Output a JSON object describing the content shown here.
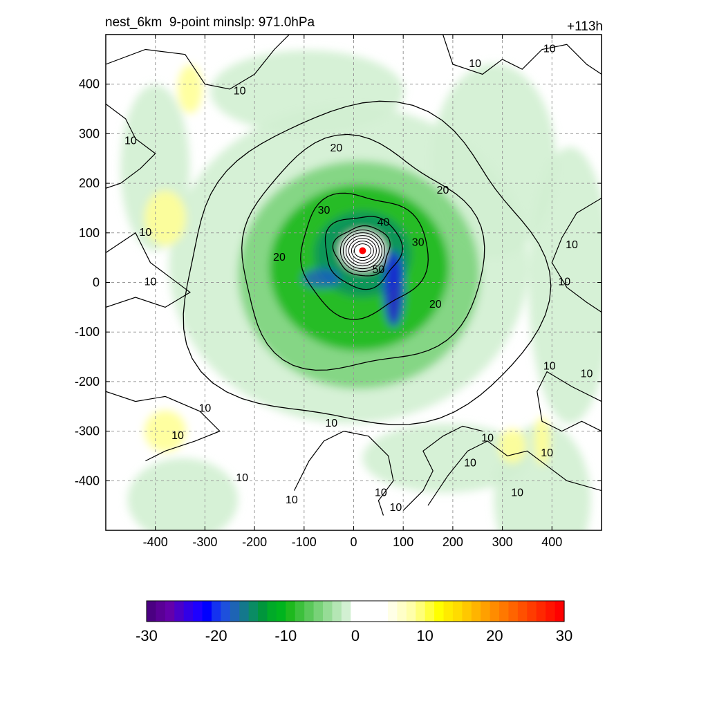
{
  "title": {
    "left": "nest_6km  9-point minslp: 971.0hPa",
    "right": "+113h"
  },
  "map": {
    "x_range": [
      -500,
      500
    ],
    "y_range": [
      -500,
      500
    ],
    "x_ticks": [
      -400,
      -300,
      -200,
      -100,
      0,
      100,
      200,
      300,
      400
    ],
    "y_ticks": [
      -400,
      -300,
      -200,
      -100,
      0,
      100,
      200,
      300,
      400
    ],
    "grid": true,
    "storm_center": [
      18,
      64
    ],
    "contour_levels": [
      10,
      20,
      30,
      40,
      50
    ],
    "contour_labels": [
      {
        "text": "10",
        "x": -230,
        "y": 385
      },
      {
        "text": "10",
        "x": -450,
        "y": 285
      },
      {
        "text": "10",
        "x": -420,
        "y": 100
      },
      {
        "text": "10",
        "x": -410,
        "y": 0
      },
      {
        "text": "10",
        "x": 245,
        "y": 440
      },
      {
        "text": "10",
        "x": 395,
        "y": 470
      },
      {
        "text": "10",
        "x": 440,
        "y": 75
      },
      {
        "text": "10",
        "x": 425,
        "y": 0
      },
      {
        "text": "10",
        "x": 395,
        "y": -170
      },
      {
        "text": "10",
        "x": 470,
        "y": -185
      },
      {
        "text": "10",
        "x": -300,
        "y": -255
      },
      {
        "text": "10",
        "x": -355,
        "y": -310
      },
      {
        "text": "10",
        "x": -45,
        "y": -285
      },
      {
        "text": "10",
        "x": -225,
        "y": -395
      },
      {
        "text": "10",
        "x": -125,
        "y": -440
      },
      {
        "text": "10",
        "x": 55,
        "y": -425
      },
      {
        "text": "10",
        "x": 85,
        "y": -455
      },
      {
        "text": "10",
        "x": 270,
        "y": -315
      },
      {
        "text": "10",
        "x": 235,
        "y": -365
      },
      {
        "text": "10",
        "x": 330,
        "y": -425
      },
      {
        "text": "10",
        "x": 390,
        "y": -345
      },
      {
        "text": "20",
        "x": -35,
        "y": 270
      },
      {
        "text": "20",
        "x": 180,
        "y": 185
      },
      {
        "text": "20",
        "x": -150,
        "y": 50
      },
      {
        "text": "20",
        "x": 165,
        "y": -45
      },
      {
        "text": "30",
        "x": -60,
        "y": 145
      },
      {
        "text": "30",
        "x": 130,
        "y": 80
      },
      {
        "text": "40",
        "x": 60,
        "y": 120
      },
      {
        "text": "50",
        "x": 50,
        "y": 25
      }
    ]
  },
  "colorbar": {
    "ticks": [
      -30,
      -20,
      -10,
      0,
      10,
      20,
      30
    ],
    "colors": [
      "#4b0082",
      "#5a0096",
      "#6400aa",
      "#4b00c8",
      "#3200e6",
      "#1e00ff",
      "#0000ff",
      "#1432f0",
      "#1e50dc",
      "#1e64b4",
      "#14788c",
      "#0a8c64",
      "#00963c",
      "#00aa28",
      "#00b41e",
      "#1eb91e",
      "#3cc03c",
      "#5ac85a",
      "#78d278",
      "#96dc96",
      "#b4e6b4",
      "#d2f0d2",
      "#ffffff",
      "#ffffff",
      "#ffffff",
      "#ffffff",
      "#ffffe6",
      "#ffffc8",
      "#ffffaa",
      "#ffff78",
      "#ffff3c",
      "#ffff00",
      "#ffeb00",
      "#ffdc00",
      "#ffc800",
      "#ffb400",
      "#ffa000",
      "#ff8c00",
      "#ff7800",
      "#ff6400",
      "#ff5000",
      "#ff3c00",
      "#ff2800",
      "#ff1400",
      "#ff0000"
    ]
  }
}
